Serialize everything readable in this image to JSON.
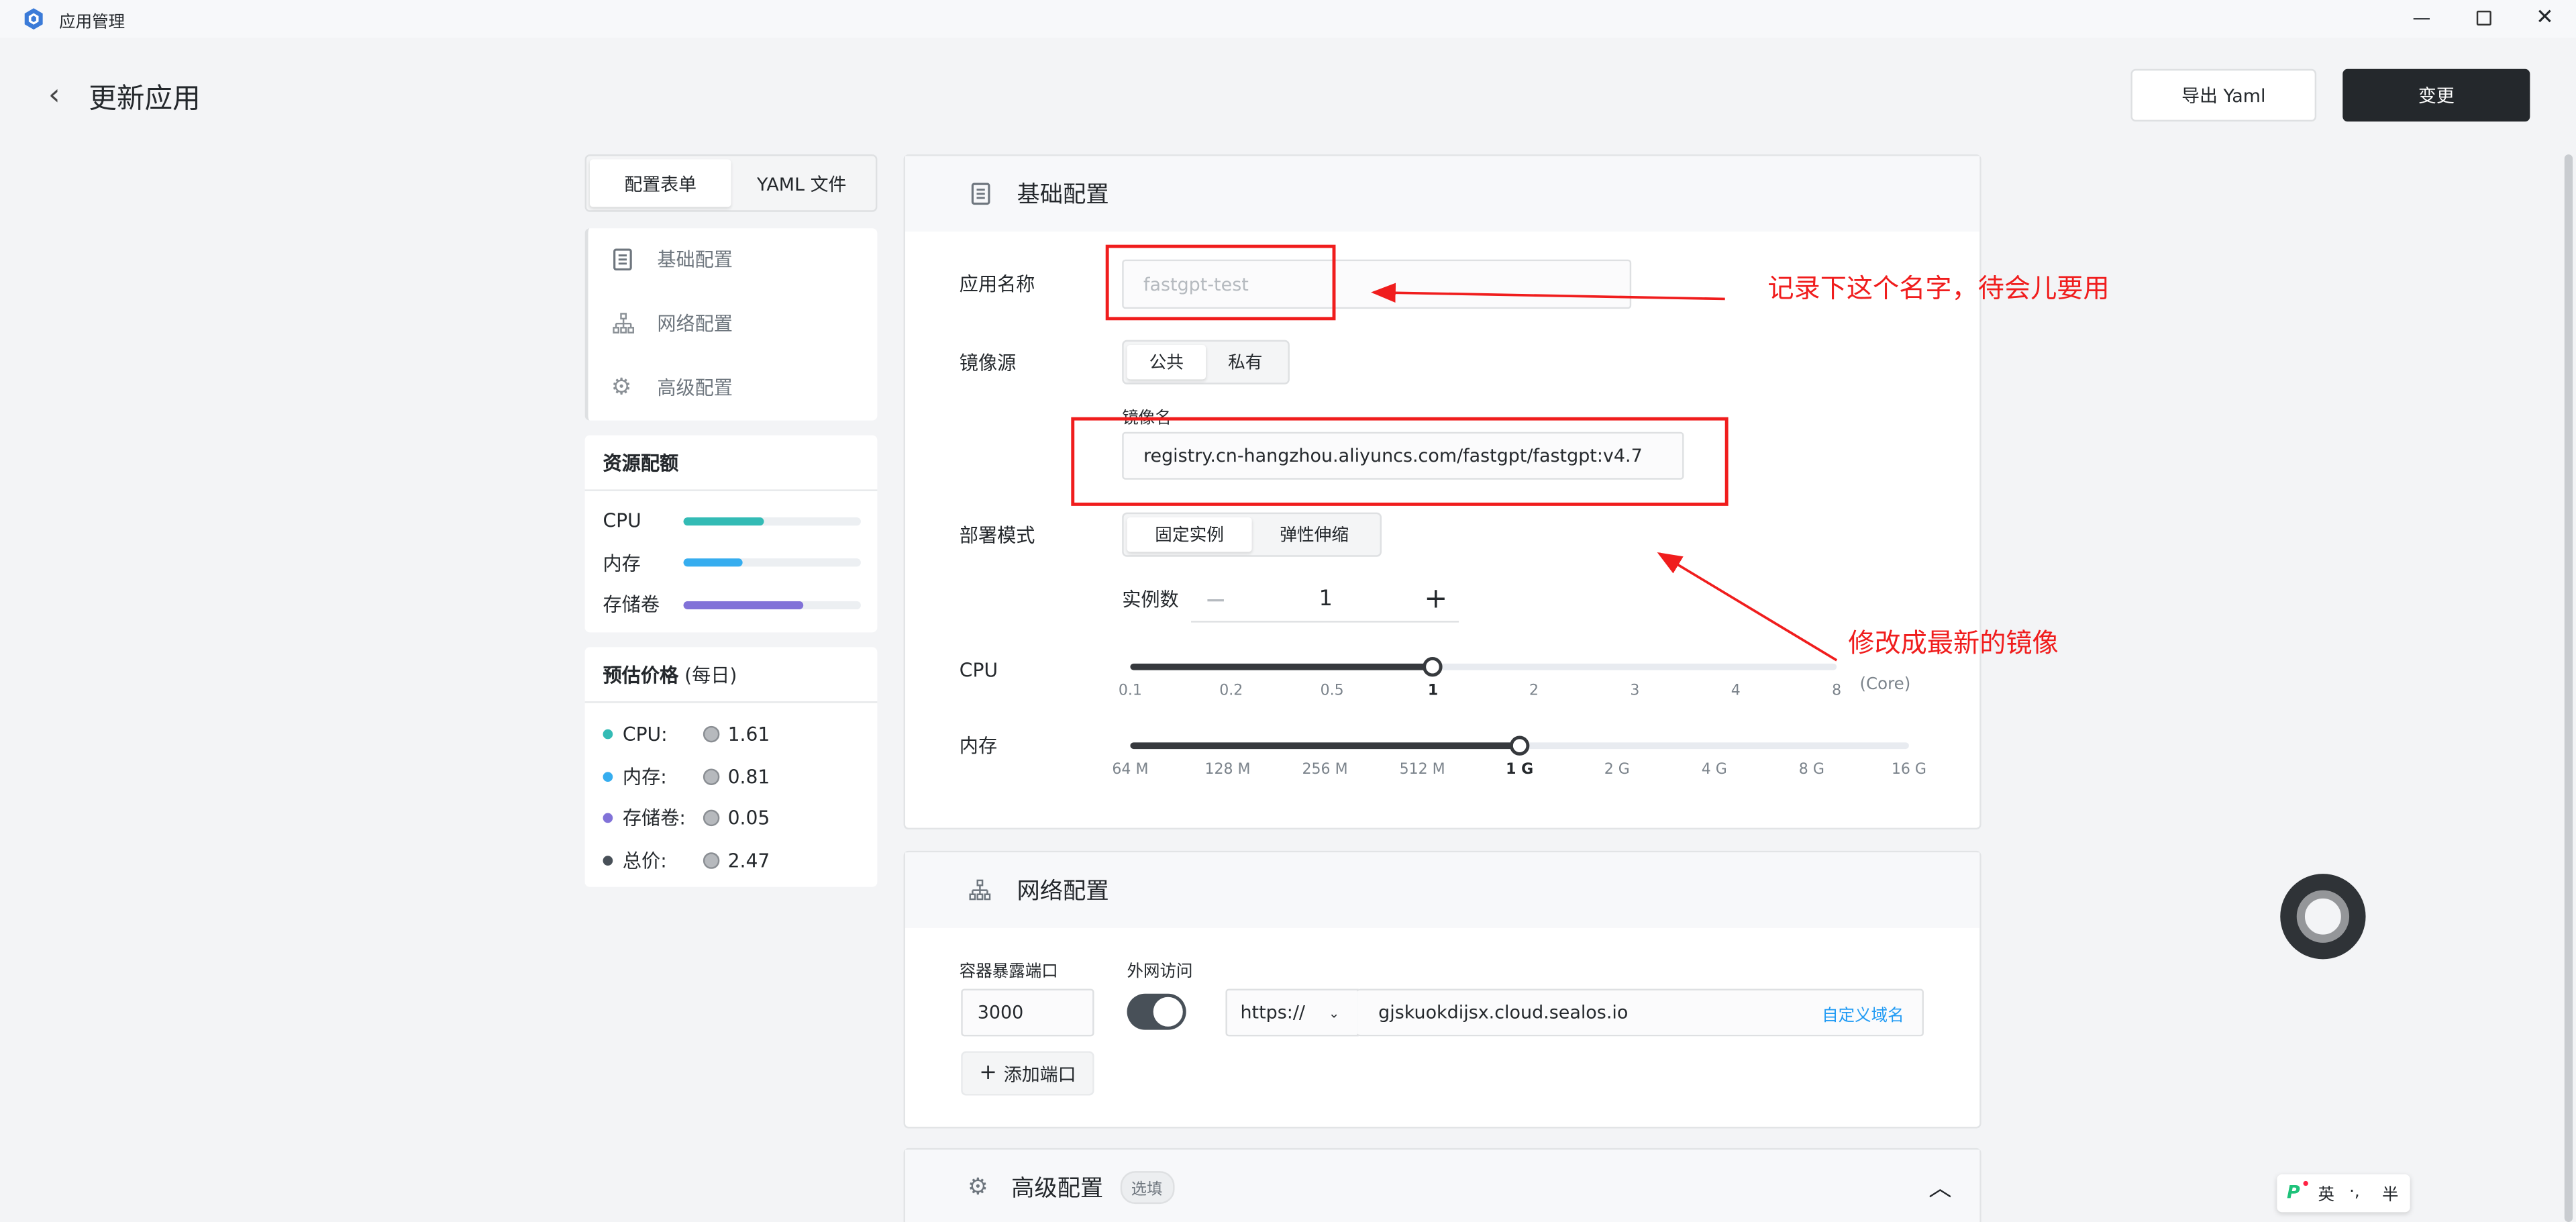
{
  "window": {
    "title": "应用管理",
    "controls": [
      "minimize",
      "restore",
      "close"
    ]
  },
  "header": {
    "back_icon": "chevron-left-icon",
    "title": "更新应用",
    "export_label": "导出 Yaml",
    "submit_label": "变更"
  },
  "sidebar": {
    "tabs": [
      {
        "label": "配置表单",
        "active": true
      },
      {
        "label": "YAML 文件",
        "active": false
      }
    ],
    "nav": [
      {
        "label": "基础配置",
        "icon": "document-icon"
      },
      {
        "label": "网络配置",
        "icon": "network-icon"
      },
      {
        "label": "高级配置",
        "icon": "gear-icon"
      }
    ],
    "quota": {
      "title": "资源配额",
      "items": [
        {
          "label": "CPU",
          "percent": 45,
          "color": "#33bbb5"
        },
        {
          "label": "内存",
          "percent": 33,
          "color": "#36adef"
        },
        {
          "label": "存储卷",
          "percent": 68,
          "color": "#8172d8"
        }
      ]
    },
    "price": {
      "title": "预估价格",
      "subtitle": "(每日)",
      "items": [
        {
          "label": "CPU:",
          "value": "1.61",
          "color": "#33bbb5"
        },
        {
          "label": "内存:",
          "value": "0.81",
          "color": "#36adef"
        },
        {
          "label": "存储卷:",
          "value": "0.05",
          "color": "#8172d8"
        },
        {
          "label": "总价:",
          "value": "2.47",
          "color": "#485058"
        }
      ]
    }
  },
  "basic": {
    "title": "基础配置",
    "app_name_label": "应用名称",
    "app_name_placeholder": "fastgpt-test",
    "image_source_label": "镜像源",
    "image_source_options": [
      {
        "label": "公共",
        "active": true
      },
      {
        "label": "私有",
        "active": false
      }
    ],
    "image_name_label": "镜像名",
    "image_name_value": "registry.cn-hangzhou.aliyuncs.com/fastgpt/fastgpt:v4.7",
    "deploy_mode_label": "部署模式",
    "deploy_mode_options": [
      {
        "label": "固定实例",
        "active": true
      },
      {
        "label": "弹性伸缩",
        "active": false
      }
    ],
    "replicas_label": "实例数",
    "replicas_value": "1",
    "minus": "−",
    "plus": "+",
    "cpu_label": "CPU",
    "cpu_ticks": [
      "0.1",
      "0.2",
      "0.5",
      "1",
      "2",
      "3",
      "4",
      "8"
    ],
    "cpu_selected": "1",
    "cpu_unit": "(Core)",
    "mem_label": "内存",
    "mem_ticks": [
      "64 M",
      "128 M",
      "256 M",
      "512 M",
      "1 G",
      "2 G",
      "4 G",
      "8 G",
      "16 G"
    ],
    "mem_selected": "1 G"
  },
  "network": {
    "title": "网络配置",
    "port_label": "容器暴露端口",
    "port_value": "3000",
    "public_label": "外网访问",
    "public_enabled": true,
    "protocol": "https://",
    "domain": "gjskuokdijsx.cloud.sealos.io",
    "custom_domain": "自定义域名",
    "add_port": "添加端口",
    "add_icon": "+"
  },
  "advanced": {
    "title": "高级配置",
    "badge": "选填"
  },
  "annotations": {
    "name_note": "记录下这个名字，待会儿要用",
    "image_note": "修改成最新的镜像",
    "color": "#f01d1d"
  },
  "ime": {
    "mode": "英",
    "punct": "·,",
    "width": "半"
  }
}
